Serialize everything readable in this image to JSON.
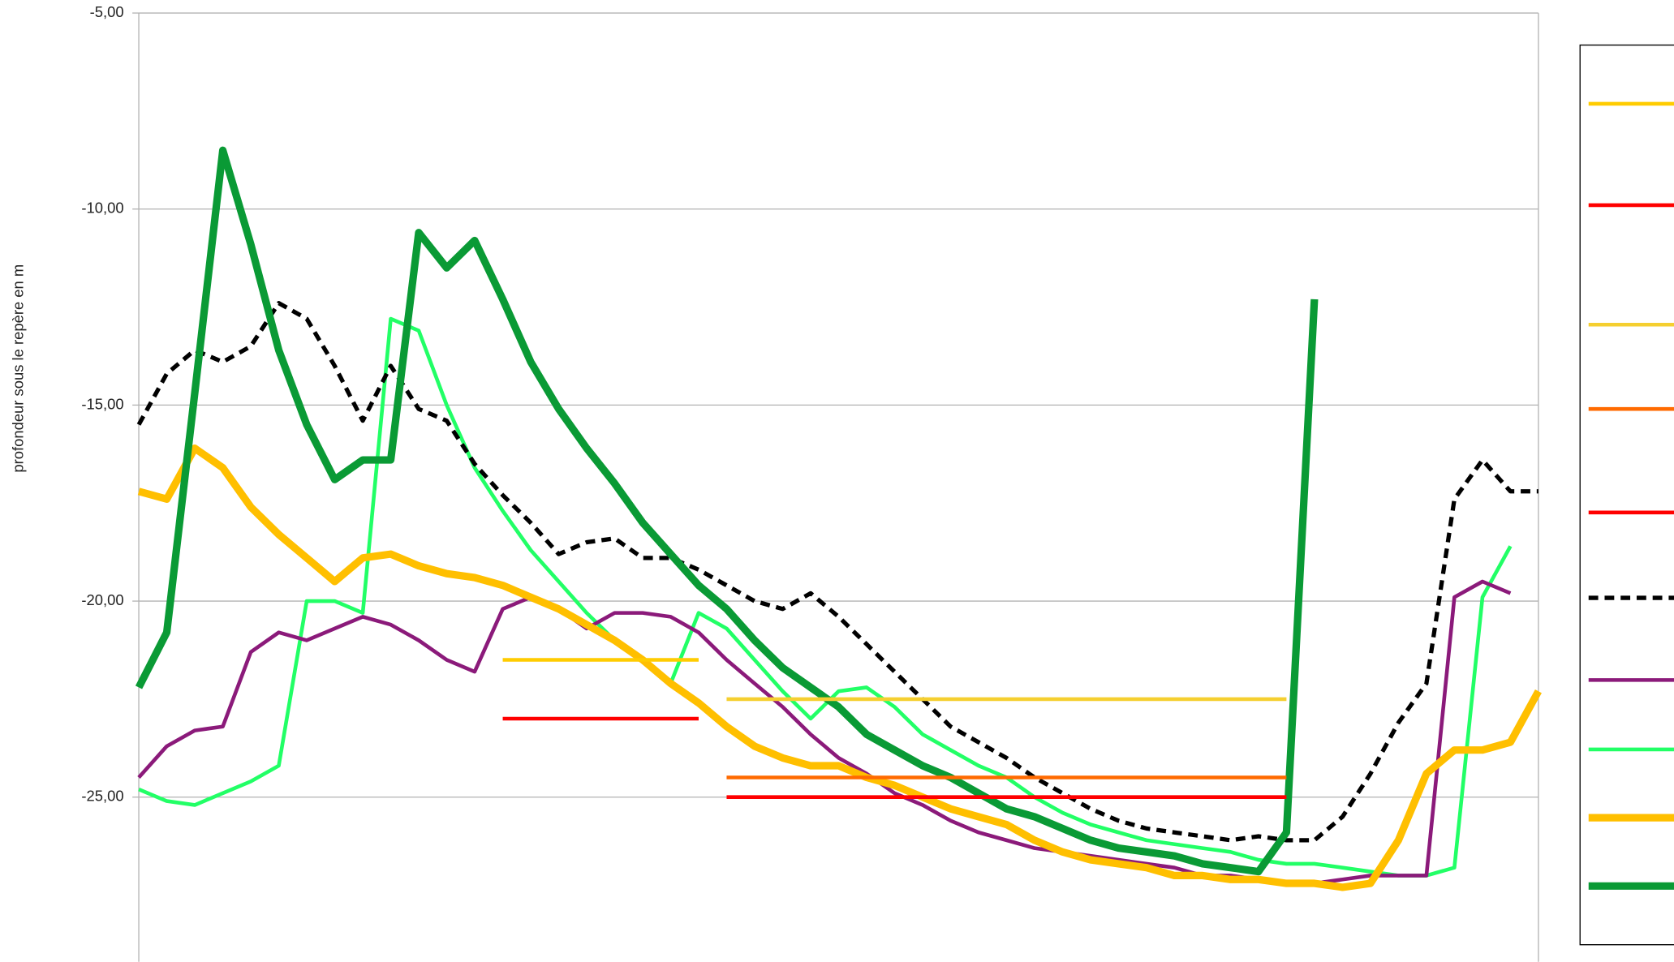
{
  "chart_data": {
    "type": "line",
    "y_label": "profondeur sous le repère en m",
    "ylim": [
      -29.2,
      -5
    ],
    "yticks": [
      {
        "value": -5,
        "label": "-5,00"
      },
      {
        "value": -10,
        "label": "-10,00"
      },
      {
        "value": -15,
        "label": "-15,00"
      },
      {
        "value": -20,
        "label": "-20,00"
      },
      {
        "value": -25,
        "label": "-25,00"
      }
    ],
    "grid": true,
    "legend": "right",
    "xlim": [
      0,
      100
    ],
    "x": [
      0,
      2,
      4,
      6,
      8,
      10,
      12,
      14,
      16,
      18,
      20,
      22,
      24,
      26,
      28,
      30,
      32,
      34,
      36,
      38,
      40,
      42,
      44,
      46,
      48,
      50,
      52,
      54,
      56,
      58,
      60,
      62,
      64,
      66,
      68,
      70,
      72,
      74,
      76,
      78,
      80,
      82,
      84,
      86,
      88,
      90,
      92,
      94,
      96,
      98,
      100
    ],
    "series": [
      {
        "color": "#ffcc00",
        "style": "medium",
        "values": [
          null,
          null,
          null,
          null,
          null,
          null,
          null,
          null,
          null,
          null,
          null,
          null,
          null,
          -21.5,
          -21.5,
          -21.5,
          -21.5,
          -21.5,
          -21.5,
          -21.5,
          -21.5,
          null,
          null,
          null,
          null,
          null,
          null,
          null,
          null,
          null,
          null,
          null,
          null,
          null,
          null,
          null,
          null,
          null,
          null,
          null,
          null,
          null,
          null,
          null,
          null,
          null,
          null,
          null,
          null,
          null,
          null
        ]
      },
      {
        "color": "#ff0000",
        "style": "medium",
        "values": [
          null,
          null,
          null,
          null,
          null,
          null,
          null,
          null,
          null,
          null,
          null,
          null,
          null,
          -23.0,
          -23.0,
          -23.0,
          -23.0,
          -23.0,
          -23.0,
          -23.0,
          -23.0,
          null,
          null,
          null,
          null,
          null,
          null,
          null,
          null,
          null,
          null,
          null,
          null,
          null,
          null,
          null,
          null,
          null,
          null,
          null,
          null,
          null,
          null,
          null,
          null,
          null,
          null,
          null,
          null,
          null,
          null
        ]
      },
      {
        "color": "#f5cf30",
        "style": "medium",
        "values": [
          null,
          null,
          null,
          null,
          null,
          null,
          null,
          null,
          null,
          null,
          null,
          null,
          null,
          null,
          null,
          null,
          null,
          null,
          null,
          null,
          null,
          -22.5,
          -22.5,
          -22.5,
          -22.5,
          -22.5,
          -22.5,
          -22.5,
          -22.5,
          -22.5,
          -22.5,
          -22.5,
          -22.5,
          -22.5,
          -22.5,
          -22.5,
          -22.5,
          -22.5,
          -22.5,
          -22.5,
          -22.5,
          -22.5,
          null,
          null,
          null,
          null,
          null,
          null,
          null,
          null,
          null
        ]
      },
      {
        "color": "#ff6a00",
        "style": "medium",
        "values": [
          null,
          null,
          null,
          null,
          null,
          null,
          null,
          null,
          null,
          null,
          null,
          null,
          null,
          null,
          null,
          null,
          null,
          null,
          null,
          null,
          null,
          -24.5,
          -24.5,
          -24.5,
          -24.5,
          -24.5,
          -24.5,
          -24.5,
          -24.5,
          -24.5,
          -24.5,
          -24.5,
          -24.5,
          -24.5,
          -24.5,
          -24.5,
          -24.5,
          -24.5,
          -24.5,
          -24.5,
          -24.5,
          -24.5,
          null,
          null,
          null,
          null,
          null,
          null,
          null,
          null,
          null
        ]
      },
      {
        "color": "#ff0000",
        "style": "medium",
        "values": [
          null,
          null,
          null,
          null,
          null,
          null,
          null,
          null,
          null,
          null,
          null,
          null,
          null,
          null,
          null,
          null,
          null,
          null,
          null,
          null,
          null,
          -25.0,
          -25.0,
          -25.0,
          -25.0,
          -25.0,
          -25.0,
          -25.0,
          -25.0,
          -25.0,
          -25.0,
          -25.0,
          -25.0,
          -25.0,
          -25.0,
          -25.0,
          -25.0,
          -25.0,
          -25.0,
          -25.0,
          -25.0,
          -25.0,
          null,
          null,
          null,
          null,
          null,
          null,
          null,
          null,
          null
        ]
      },
      {
        "color": "#000000",
        "style": "dashed",
        "values": [
          -15.5,
          -14.2,
          -13.6,
          -13.9,
          -13.5,
          -12.4,
          -12.8,
          -14.0,
          -15.4,
          -14.0,
          -15.1,
          -15.4,
          -16.5,
          -17.3,
          -18.0,
          -18.8,
          -18.5,
          -18.4,
          -18.9,
          -18.9,
          -19.2,
          -19.6,
          -20.0,
          -20.2,
          -19.8,
          -20.4,
          -21.1,
          -21.8,
          -22.5,
          -23.2,
          -23.6,
          -24.0,
          -24.5,
          -24.9,
          -25.3,
          -25.6,
          -25.8,
          -25.9,
          -26.0,
          -26.1,
          -26.0,
          -26.1,
          -26.1,
          -25.5,
          -24.4,
          -23.1,
          -22.1,
          -17.4,
          -16.4,
          -17.2,
          -17.2
        ]
      },
      {
        "color": "#8b1a7a",
        "style": "medium",
        "values": [
          -24.5,
          -23.7,
          -23.3,
          -23.2,
          -21.3,
          -20.8,
          -21.0,
          -20.7,
          -20.4,
          -20.6,
          -21.0,
          -21.5,
          -21.8,
          -20.2,
          -19.9,
          -20.2,
          -20.7,
          -20.3,
          -20.3,
          -20.4,
          -20.8,
          -21.5,
          -22.1,
          -22.7,
          -23.4,
          -24.0,
          -24.4,
          -24.9,
          -25.2,
          -25.6,
          -25.9,
          -26.1,
          -26.3,
          -26.4,
          -26.5,
          -26.6,
          -26.7,
          -26.8,
          -27.0,
          -27.0,
          -27.1,
          -27.2,
          -27.2,
          -27.1,
          -27.0,
          -27.0,
          -27.0,
          -19.9,
          -19.5,
          -19.8,
          null
        ]
      },
      {
        "color": "#22ff66",
        "style": "medium",
        "values": [
          -24.8,
          -25.1,
          -25.2,
          -24.9,
          -24.6,
          -24.2,
          -20.0,
          -20.0,
          -20.3,
          -12.8,
          -13.1,
          -15.0,
          -16.6,
          -17.7,
          -18.7,
          -19.5,
          -20.3,
          -21.0,
          -21.5,
          -22.1,
          -20.3,
          -20.7,
          -21.5,
          -22.3,
          -23.0,
          -22.3,
          -22.2,
          -22.7,
          -23.4,
          -23.8,
          -24.2,
          -24.5,
          -25.0,
          -25.4,
          -25.7,
          -25.9,
          -26.1,
          -26.2,
          -26.3,
          -26.4,
          -26.6,
          -26.7,
          -26.7,
          -26.8,
          -26.9,
          -27.0,
          -27.0,
          -26.8,
          -19.9,
          -18.6,
          null
        ]
      },
      {
        "color": "#ffbf00",
        "style": "thick",
        "values": [
          -17.2,
          -17.4,
          -16.1,
          -16.6,
          -17.6,
          -18.3,
          -18.9,
          -19.5,
          -18.9,
          -18.8,
          -19.1,
          -19.3,
          -19.4,
          -19.6,
          -19.9,
          -20.2,
          -20.6,
          -21.0,
          -21.5,
          -22.1,
          -22.6,
          -23.2,
          -23.7,
          -24.0,
          -24.2,
          -24.2,
          -24.5,
          -24.7,
          -25.0,
          -25.3,
          -25.5,
          -25.7,
          -26.1,
          -26.4,
          -26.6,
          -26.7,
          -26.8,
          -27.0,
          -27.0,
          -27.1,
          -27.1,
          -27.2,
          -27.2,
          -27.3,
          -27.2,
          -26.1,
          -24.4,
          -23.8,
          -23.8,
          -23.6,
          -22.3
        ]
      },
      {
        "color": "#0a9a35",
        "style": "thick",
        "values": [
          -22.2,
          -20.8,
          -14.7,
          -8.5,
          -10.9,
          -13.6,
          -15.5,
          -16.9,
          -16.4,
          -16.4,
          -10.6,
          -11.5,
          -10.8,
          -12.3,
          -13.9,
          -15.1,
          -16.1,
          -17.0,
          -18.0,
          -18.8,
          -19.6,
          -20.2,
          -21.0,
          -21.7,
          -22.2,
          -22.7,
          -23.4,
          -23.8,
          -24.2,
          -24.5,
          -24.9,
          -25.3,
          -25.5,
          -25.8,
          -26.1,
          -26.3,
          -26.4,
          -26.5,
          -26.7,
          -26.8,
          -26.9,
          -25.9,
          -12.3,
          null,
          null,
          null,
          null,
          null,
          null,
          null,
          null
        ]
      }
    ]
  }
}
